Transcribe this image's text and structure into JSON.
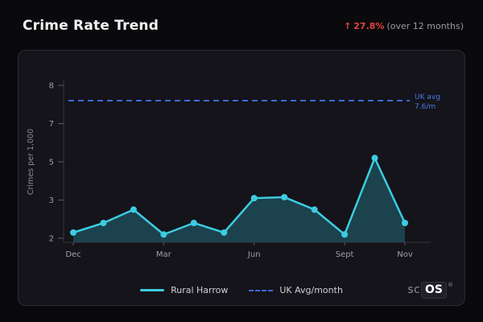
{
  "header": {
    "title": "Crime Rate Trend",
    "trend_arrow": "↑",
    "trend_value": "27.8%",
    "trend_period": "(over 12 months)"
  },
  "colors": {
    "accent_cyan": "#3ecbe0",
    "avg_blue": "#3f6ad8",
    "trend_red": "#e0443c",
    "area_fill": "#1d4e5a"
  },
  "chart_data": {
    "type": "line",
    "ylabel": "Crimes per 1,000",
    "x_tick_labels": [
      "Dec",
      "Mar",
      "Jun",
      "Sept",
      "Nov"
    ],
    "x_tick_indices": [
      0,
      3,
      6,
      9,
      11
    ],
    "y_ticks": [
      2,
      3,
      5,
      7,
      8
    ],
    "series": [
      {
        "name": "Rural Harrow",
        "style": "solid",
        "color": "#3ecbe0",
        "area_fill": "#1d4e5a",
        "values": [
          2.15,
          2.4,
          2.75,
          2.1,
          2.4,
          2.15,
          3.1,
          3.15,
          2.75,
          2.1,
          5.2,
          2.4
        ]
      },
      {
        "name": "UK Avg/month",
        "style": "dashed",
        "color": "#3f6ad8",
        "constant": 7.6
      }
    ],
    "annotation": {
      "line1": "UK avg",
      "line2": "7.6/m"
    },
    "legend": {
      "item1": "Rural Harrow",
      "item2": "UK Avg/month"
    },
    "grid": false,
    "legend_position": "bottom-center"
  },
  "footer_logo": {
    "prefix": "sc",
    "suffix": "OS",
    "reg": "®"
  }
}
